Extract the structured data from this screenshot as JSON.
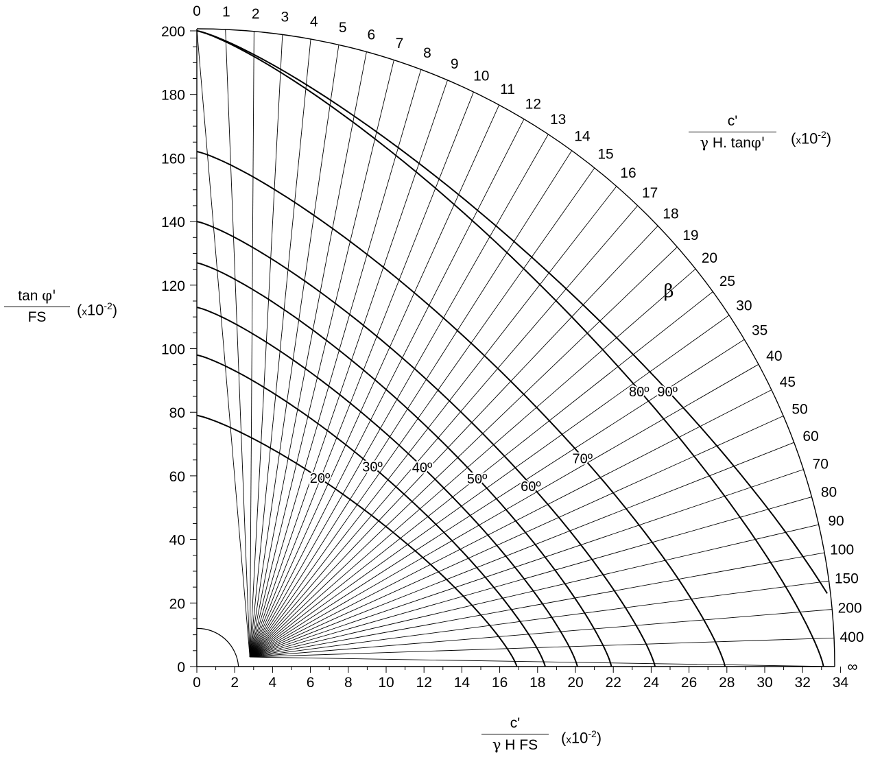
{
  "chart_data": {
    "type": "line",
    "description_type": "polar stability chart",
    "x_axis": {
      "ticks": [
        "0",
        "2",
        "4",
        "6",
        "8",
        "10",
        "12",
        "14",
        "16",
        "18",
        "20",
        "22",
        "24",
        "26",
        "28",
        "30",
        "32",
        "34"
      ],
      "range": [
        0,
        34
      ]
    },
    "y_axis": {
      "ticks": [
        "0",
        "20",
        "40",
        "60",
        "80",
        "100",
        "120",
        "140",
        "160",
        "180",
        "200"
      ],
      "range": [
        0,
        200
      ]
    },
    "radial_labels": [
      "0",
      "1",
      "2",
      "3",
      "4",
      "5",
      "6",
      "7",
      "8",
      "9",
      "10",
      "11",
      "12",
      "13",
      "14",
      "15",
      "16",
      "17",
      "18",
      "19",
      "20",
      "25",
      "30",
      "35",
      "40",
      "45",
      "50",
      "60",
      "70",
      "80",
      "90",
      "100",
      "150",
      "200",
      "400",
      "∞"
    ],
    "beta_label": "β",
    "beta_curves": [
      {
        "label": "20º",
        "y_intercept": 79,
        "x_intercept": 16.9
      },
      {
        "label": "30º",
        "y_intercept": 98,
        "x_intercept": 18.4
      },
      {
        "label": "40º",
        "y_intercept": 113,
        "x_intercept": 20.1
      },
      {
        "label": "50º",
        "y_intercept": 127,
        "x_intercept": 21.9
      },
      {
        "label": "60º",
        "y_intercept": 140,
        "x_intercept": 24.2
      },
      {
        "label": "70º",
        "y_intercept": 162,
        "x_intercept": 27.9
      },
      {
        "label": "80º",
        "y_intercept": 200,
        "x_intercept": 33.1
      },
      {
        "label": "90º",
        "y_intercept": 200,
        "x_intercept": 35.2
      }
    ]
  },
  "labels": {
    "top_frac_num": "c'",
    "top_frac_den_gamma": "γ",
    "top_frac_den_rest": " H.  tan",
    "top_frac_den_phi": "φ'",
    "left_frac_num_a": "tan ",
    "left_frac_num_phi": "φ'",
    "left_frac_den": "FS",
    "bottom_frac_num": "c'",
    "bottom_frac_den_gamma": "γ",
    "bottom_frac_den_rest": " H  FS",
    "mult_x": "x",
    "mult_ten": "10",
    "mult_exp": "-2"
  }
}
